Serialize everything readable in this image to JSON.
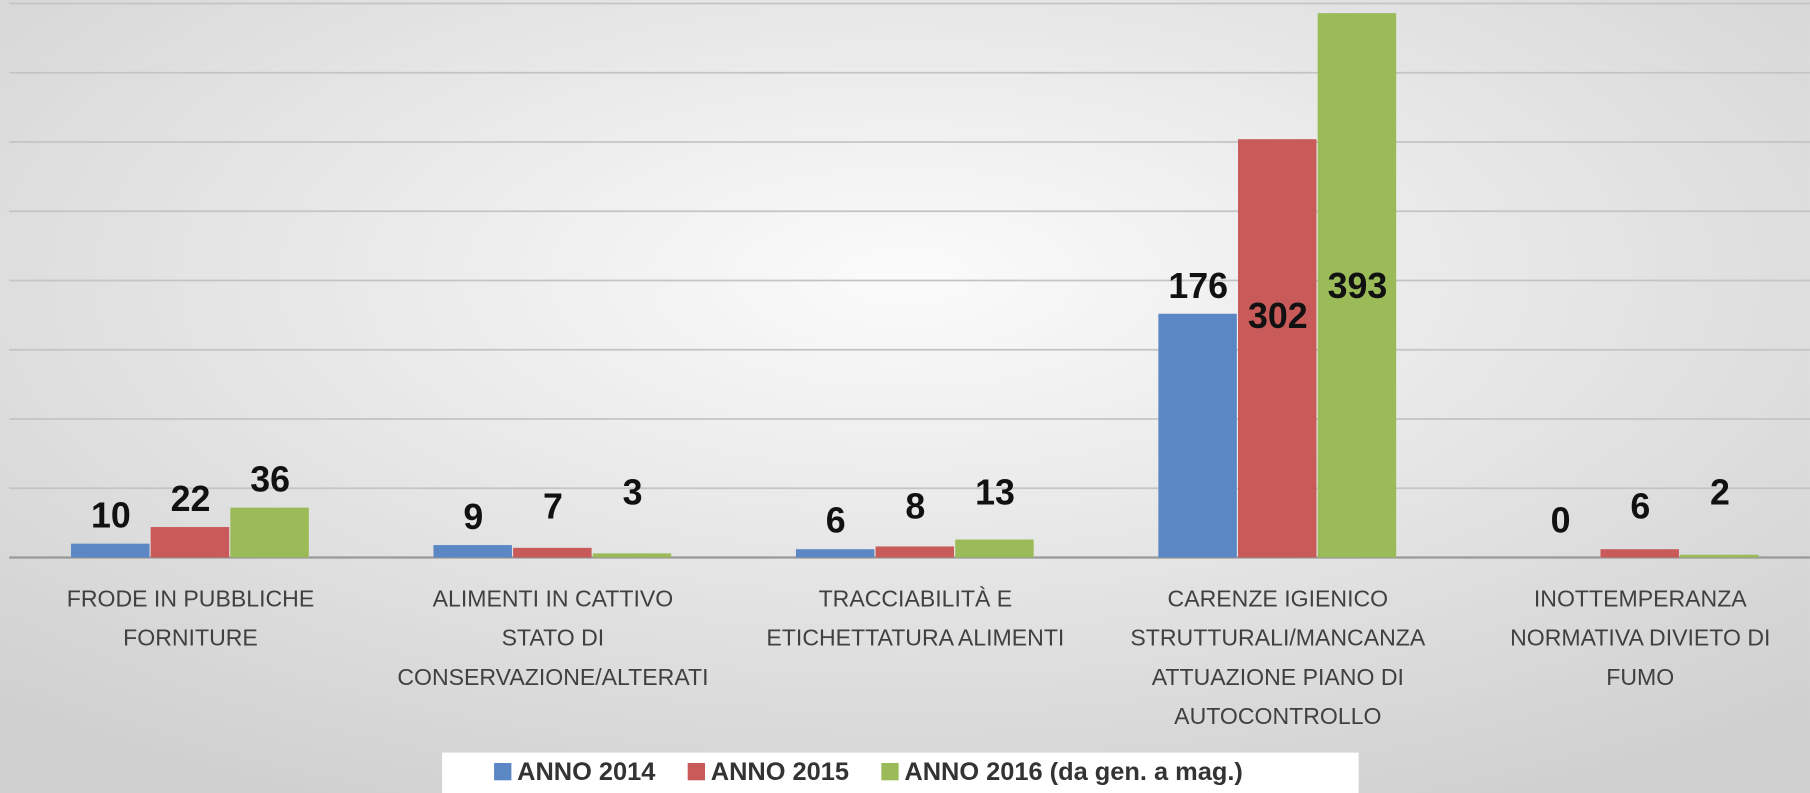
{
  "chart_data": {
    "type": "bar",
    "categories": [
      [
        "FRODE IN PUBBLICHE",
        "FORNITURE"
      ],
      [
        "ALIMENTI IN CATTIVO",
        "STATO DI",
        "CONSERVAZIONE/ALTERATI"
      ],
      [
        "TRACCIABILITÀ E",
        "ETICHETTATURA ALIMENTI"
      ],
      [
        "CARENZE IGIENICO",
        "STRUTTURALI/MANCANZA",
        "ATTUAZIONE PIANO DI",
        "AUTOCONTROLLO"
      ],
      [
        "INOTTEMPERANZA",
        "NORMATIVA DIVIETO DI",
        "FUMO"
      ]
    ],
    "series": [
      {
        "name": "ANNO 2014",
        "color": "#5b87c5",
        "values": [
          10,
          9,
          6,
          176,
          0
        ]
      },
      {
        "name": "ANNO 2015",
        "color": "#c85a5a",
        "values": [
          22,
          7,
          8,
          302,
          6
        ]
      },
      {
        "name": "ANNO 2016 (da gen. a mag.)",
        "color": "#9bbb59",
        "values": [
          36,
          3,
          13,
          393,
          2
        ]
      }
    ],
    "ylim": [
      0,
      400
    ],
    "yticks": [
      0,
      50,
      100,
      150,
      200,
      250,
      300,
      350,
      400
    ],
    "grid": true
  }
}
